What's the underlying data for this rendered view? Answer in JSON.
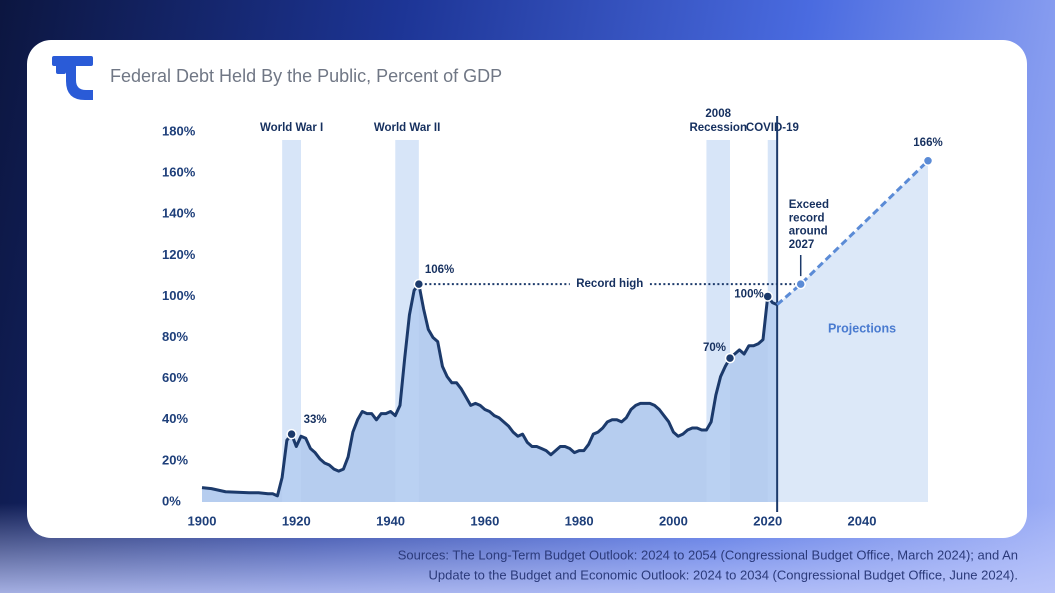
{
  "header": {
    "title": "Federal Debt Held By the Public, Percent of GDP"
  },
  "chart_data": {
    "type": "line",
    "xlim": [
      1900,
      2054
    ],
    "ylim": [
      0,
      180
    ],
    "xticks": [
      1900,
      1920,
      1940,
      1960,
      1980,
      2000,
      2020,
      2040
    ],
    "yticks": [
      {
        "value": 0,
        "label": "0%"
      },
      {
        "value": 20,
        "label": "20%"
      },
      {
        "value": 40,
        "label": "40%"
      },
      {
        "value": 60,
        "label": "60%"
      },
      {
        "value": 80,
        "label": "80%"
      },
      {
        "value": 100,
        "label": "100%"
      },
      {
        "value": 120,
        "label": "120%"
      },
      {
        "value": 140,
        "label": "140%"
      },
      {
        "value": 160,
        "label": "160%"
      },
      {
        "value": 180,
        "label": "180%"
      }
    ],
    "grid": false,
    "series": [
      {
        "color": "#1c3a6b",
        "area_color": "#a9c4ec",
        "style": "solid",
        "x": [
          1900,
          1902,
          1905,
          1910,
          1912,
          1914,
          1915,
          1916,
          1917,
          1918,
          1919,
          1920,
          1921,
          1922,
          1923,
          1924,
          1925,
          1926,
          1927,
          1928,
          1929,
          1930,
          1931,
          1932,
          1933,
          1934,
          1935,
          1936,
          1937,
          1938,
          1939,
          1940,
          1941,
          1942,
          1943,
          1944,
          1945,
          1946,
          1947,
          1948,
          1949,
          1950,
          1951,
          1952,
          1953,
          1954,
          1955,
          1956,
          1957,
          1958,
          1959,
          1960,
          1961,
          1962,
          1963,
          1964,
          1965,
          1966,
          1967,
          1968,
          1969,
          1970,
          1971,
          1972,
          1973,
          1974,
          1975,
          1976,
          1977,
          1978,
          1979,
          1980,
          1981,
          1982,
          1983,
          1984,
          1985,
          1986,
          1987,
          1988,
          1989,
          1990,
          1991,
          1992,
          1993,
          1994,
          1995,
          1996,
          1997,
          1998,
          1999,
          2000,
          2001,
          2002,
          2003,
          2004,
          2005,
          2006,
          2007,
          2008,
          2009,
          2010,
          2011,
          2012,
          2013,
          2014,
          2015,
          2016,
          2017,
          2018,
          2019,
          2020,
          2021,
          2022
        ],
        "values": [
          7,
          6.5,
          5,
          4.5,
          4.5,
          4,
          4,
          3,
          12,
          30,
          33,
          27,
          32,
          31,
          26,
          24,
          21,
          19,
          18,
          16,
          15,
          16,
          22,
          34,
          40,
          44,
          43,
          43,
          40,
          43,
          43,
          44,
          42,
          47,
          70,
          91,
          103,
          106,
          94,
          84,
          80,
          78,
          66,
          61,
          58,
          58,
          55,
          51,
          47,
          48,
          47,
          45,
          44,
          42,
          41,
          39,
          37,
          34,
          32,
          33,
          29,
          27,
          27,
          26,
          25,
          23,
          25,
          27,
          27,
          26,
          24,
          25,
          25,
          28,
          33,
          34,
          36,
          39,
          40,
          40,
          39,
          41,
          45,
          47,
          48,
          48,
          48,
          47,
          45,
          42,
          39,
          34,
          32,
          33,
          35,
          36,
          36,
          35,
          35,
          39,
          52,
          61,
          66,
          70,
          72,
          74,
          72,
          76,
          76,
          77,
          79,
          100,
          97,
          96
        ]
      },
      {
        "color": "#5b8bd6",
        "area_color": "#d6e4f7",
        "style": "dashed",
        "x": [
          2022,
          2027,
          2054
        ],
        "values": [
          96,
          106,
          166
        ]
      }
    ],
    "periods": [
      {
        "label": [
          "World War I"
        ],
        "start": 1917,
        "end": 1921
      },
      {
        "label": [
          "World War II"
        ],
        "start": 1941,
        "end": 1946
      },
      {
        "label": [
          "2008",
          "Recession"
        ],
        "start": 2007,
        "end": 2012
      },
      {
        "label": [
          "COVID-19"
        ],
        "start": 2020,
        "end": 2022
      }
    ],
    "divider_x": 2022,
    "highlights": [
      {
        "x": 1919,
        "value": 33,
        "label": "33%"
      },
      {
        "x": 1946,
        "value": 106,
        "label": "106%"
      },
      {
        "x": 2012,
        "value": 70,
        "label": "70%"
      },
      {
        "x": 2020,
        "value": 100,
        "label": "100%"
      },
      {
        "x": 2054,
        "value": 166,
        "label": "166%"
      },
      {
        "x": 2027,
        "value": 106
      }
    ],
    "record_high": {
      "label": "Record high",
      "value": 106,
      "from": 1946,
      "to": 2027
    },
    "exceed_note": [
      "Exceed",
      "record",
      "around",
      "2027"
    ],
    "projection_label": "Projections"
  },
  "footer": {
    "sources": [
      "Sources: The Long-Term Budget Outlook: 2024 to 2054 (Congressional Budget Office, March 2024); and An",
      "Update to the Budget and Economic Outlook: 2024 to 2034 (Congressional Budget Office, June 2024)."
    ]
  }
}
